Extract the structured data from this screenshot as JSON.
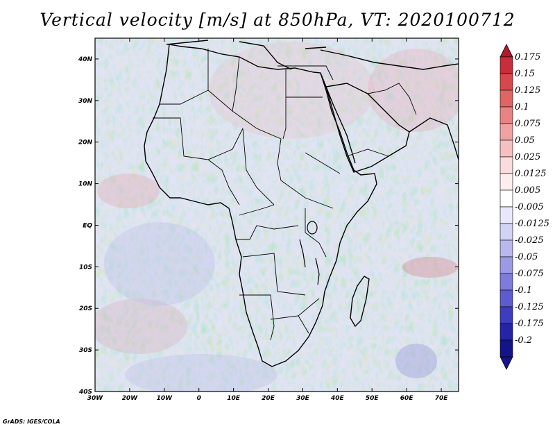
{
  "title": "Vertical velocity [m/s] at 850hPa, VT: 2020100712",
  "footer": "GrADS: IGES/COLA",
  "map": {
    "lon_range": [
      -30,
      75
    ],
    "lat_range": [
      -40,
      45
    ],
    "x_ticks": [
      "30W",
      "20W",
      "10W",
      "0",
      "10E",
      "20E",
      "30E",
      "40E",
      "50E",
      "60E",
      "70E"
    ],
    "y_ticks": [
      "40N",
      "30N",
      "20N",
      "10N",
      "EQ",
      "10S",
      "20S",
      "30S",
      "40S"
    ]
  },
  "colorbar": {
    "labels": [
      "0.175",
      "0.15",
      "0.125",
      "0.1",
      "0.075",
      "0.05",
      "0.025",
      "0.0125",
      "0.005",
      "-0.005",
      "-0.0125",
      "-0.025",
      "-0.05",
      "-0.075",
      "-0.1",
      "-0.125",
      "-0.175",
      "-0.2"
    ],
    "colors": [
      "#b2182b",
      "#c72d3a",
      "#d6484c",
      "#e06464",
      "#e98282",
      "#f0a2a2",
      "#f6c0c0",
      "#fadcdc",
      "#fdeeee",
      "#ffffff",
      "#e8e8fa",
      "#d2d2f5",
      "#b8b8ee",
      "#9a9ae6",
      "#7c7cdb",
      "#5c5cce",
      "#3d3dbd",
      "#2424a6",
      "#14148a"
    ]
  }
}
